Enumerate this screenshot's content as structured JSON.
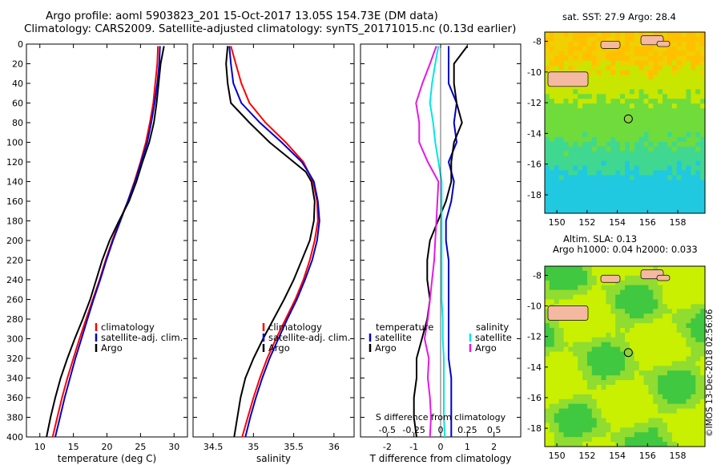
{
  "titles": {
    "line1": "Argo profile: aoml 5903823_201 15-Oct-2017 13.05S 154.73E (DM data)",
    "line2": "Climatology: CARS2009. Satellite-adjusted climatology: synTS_20171015.nc (0.13d earlier)"
  },
  "colors": {
    "climatology": "#ff0000",
    "satellite": "#0000cc",
    "argo": "#000000",
    "s_satellite": "#00e6e6",
    "s_climatology": "#e619e6",
    "land": "#f4b9a0"
  },
  "chart_data": [
    {
      "type": "line",
      "name": "temperature",
      "xlabel": "temperature (deg C)",
      "ylabel": "",
      "xlim": [
        8,
        32
      ],
      "ylim": [
        400,
        0
      ],
      "x_ticks": [
        "10",
        "15",
        "20",
        "25",
        "30"
      ],
      "y_ticks": [
        "0",
        "20",
        "40",
        "60",
        "80",
        "100",
        "120",
        "140",
        "160",
        "180",
        "200",
        "220",
        "240",
        "260",
        "280",
        "300",
        "320",
        "340",
        "360",
        "380",
        "400"
      ],
      "depth": [
        2,
        20,
        40,
        60,
        80,
        100,
        120,
        140,
        160,
        180,
        200,
        220,
        240,
        260,
        280,
        300,
        320,
        340,
        360,
        380,
        400
      ],
      "series": [
        {
          "name": "climatology",
          "values": [
            27.6,
            27.5,
            27.2,
            26.9,
            26.4,
            25.8,
            25.0,
            24.1,
            23.1,
            21.9,
            20.8,
            19.8,
            18.9,
            17.9,
            16.9,
            15.9,
            15.0,
            14.1,
            13.3,
            12.6,
            11.9
          ]
        },
        {
          "name": "satellite-adj. clim.",
          "values": [
            27.9,
            27.8,
            27.5,
            27.1,
            26.6,
            26.0,
            25.1,
            24.2,
            23.1,
            22.0,
            20.9,
            19.9,
            19.0,
            18.0,
            17.1,
            16.2,
            15.3,
            14.5,
            13.7,
            13.0,
            12.3
          ]
        },
        {
          "name": "Argo",
          "values": [
            28.5,
            28.0,
            27.7,
            27.4,
            27.0,
            26.3,
            25.3,
            24.4,
            23.3,
            21.8,
            20.4,
            19.3,
            18.4,
            17.5,
            16.4,
            15.2,
            14.1,
            13.1,
            12.3,
            11.6,
            11.0
          ]
        }
      ],
      "legend": [
        "climatology",
        "satellite-adj. clim.",
        "Argo"
      ],
      "legend_position": "bottom-right"
    },
    {
      "type": "line",
      "name": "salinity",
      "xlabel": "salinity",
      "xlim": [
        34.25,
        36.25
      ],
      "ylim": [
        400,
        0
      ],
      "x_ticks": [
        "34.5",
        "35",
        "35.5",
        "36"
      ],
      "depth": [
        2,
        20,
        40,
        60,
        80,
        100,
        120,
        130,
        140,
        160,
        180,
        200,
        220,
        240,
        260,
        280,
        300,
        320,
        340,
        360,
        380,
        400
      ],
      "series": [
        {
          "name": "climatology",
          "values": [
            34.72,
            34.78,
            34.85,
            34.95,
            35.15,
            35.4,
            35.62,
            35.68,
            35.74,
            35.79,
            35.8,
            35.76,
            35.7,
            35.62,
            35.52,
            35.4,
            35.28,
            35.17,
            35.08,
            35.0,
            34.93,
            34.86
          ]
        },
        {
          "name": "satellite-adj. clim.",
          "values": [
            34.7,
            34.72,
            34.75,
            34.85,
            35.08,
            35.35,
            35.6,
            35.68,
            35.75,
            35.8,
            35.82,
            35.79,
            35.73,
            35.64,
            35.54,
            35.42,
            35.31,
            35.2,
            35.11,
            35.03,
            34.96,
            34.9
          ]
        },
        {
          "name": "Argo",
          "values": [
            34.68,
            34.66,
            34.68,
            34.72,
            34.95,
            35.2,
            35.5,
            35.65,
            35.72,
            35.76,
            35.75,
            35.7,
            35.6,
            35.5,
            35.38,
            35.25,
            35.12,
            35.0,
            34.9,
            34.84,
            34.8,
            34.76
          ]
        }
      ],
      "legend": [
        "climatology",
        "satellite-adj. clim.",
        "Argo"
      ],
      "legend_position": "bottom-right"
    },
    {
      "type": "line",
      "name": "difference",
      "xlabel": "T difference from climatology",
      "top_label": "S difference from climatology",
      "xlim": [
        -3,
        3
      ],
      "ylim": [
        400,
        0
      ],
      "x_ticks": [
        "-2",
        "-1",
        "0",
        "1",
        "2"
      ],
      "s_ticks": [
        "-0.5",
        "-0.25",
        "0",
        "0.25",
        "0.5"
      ],
      "s_xlim": [
        -0.75,
        0.75
      ],
      "depth": [
        2,
        20,
        40,
        60,
        80,
        100,
        120,
        140,
        160,
        180,
        200,
        220,
        240,
        260,
        280,
        300,
        320,
        340,
        360,
        380,
        400
      ],
      "series": [
        {
          "name": "temperature satellite",
          "axis": "T",
          "color_key": "satellite",
          "values": [
            0.3,
            0.3,
            0.3,
            0.6,
            0.5,
            0.6,
            0.3,
            0.5,
            0.4,
            0.2,
            0.2,
            0.3,
            0.3,
            0.3,
            0.3,
            0.3,
            0.3,
            0.4,
            0.4,
            0.4,
            0.4
          ]
        },
        {
          "name": "temperature Argo",
          "axis": "T",
          "color_key": "argo",
          "values": [
            1.0,
            0.5,
            0.5,
            0.6,
            0.8,
            0.5,
            0.4,
            0.4,
            0.2,
            -0.1,
            -0.4,
            -0.5,
            -0.5,
            -0.4,
            -0.5,
            -0.7,
            -0.9,
            -0.9,
            -1.0,
            -1.0,
            -0.9
          ]
        },
        {
          "name": "salinity satellite",
          "axis": "S",
          "color_key": "s_satellite",
          "values": [
            -0.02,
            -0.05,
            -0.08,
            -0.1,
            -0.07,
            -0.05,
            -0.02,
            0.01,
            0.01,
            0.01,
            0.01,
            0.01,
            0.01,
            0.01,
            0.02,
            0.02,
            0.03,
            0.03,
            0.03,
            0.03,
            0.04
          ]
        },
        {
          "name": "salinity Argo",
          "axis": "S",
          "color_key": "s_climatology",
          "values": [
            -0.04,
            -0.1,
            -0.17,
            -0.23,
            -0.2,
            -0.2,
            -0.12,
            -0.02,
            -0.03,
            -0.04,
            -0.05,
            -0.06,
            -0.08,
            -0.1,
            -0.12,
            -0.15,
            -0.11,
            -0.12,
            -0.1,
            -0.09,
            -0.1
          ]
        }
      ],
      "legend_left": {
        "header": "temperature",
        "items": [
          "satellite",
          "Argo"
        ]
      },
      "legend_right": {
        "header": "salinity",
        "items": [
          "satellite",
          "Argo"
        ]
      }
    },
    {
      "type": "heatmap",
      "name": "sst-map",
      "title": "sat. SST: 27.9 Argo: 28.4",
      "x_ticks": [
        "150",
        "152",
        "154",
        "156",
        "158"
      ],
      "y_ticks": [
        "-8",
        "-10",
        "-12",
        "-14",
        "-16",
        "-18"
      ],
      "xlim": [
        149.2,
        159.8
      ],
      "ylim": [
        -19.2,
        -7.4
      ],
      "argo_location": {
        "lon": 154.73,
        "lat": -13.05
      }
    },
    {
      "type": "heatmap",
      "name": "sla-map",
      "title": "Altim. SLA: 0.13",
      "subtitle": "Argo h1000: 0.04 h2000: 0.033",
      "x_ticks": [
        "150",
        "152",
        "154",
        "156",
        "158"
      ],
      "y_ticks": [
        "-8",
        "-10",
        "-12",
        "-14",
        "-16",
        "-18"
      ],
      "xlim": [
        149.2,
        159.8
      ],
      "ylim": [
        -19.2,
        -7.4
      ],
      "argo_location": {
        "lon": 154.73,
        "lat": -13.05
      }
    }
  ],
  "credit": "©IMOS 13-Dec-2018 02:56:06"
}
